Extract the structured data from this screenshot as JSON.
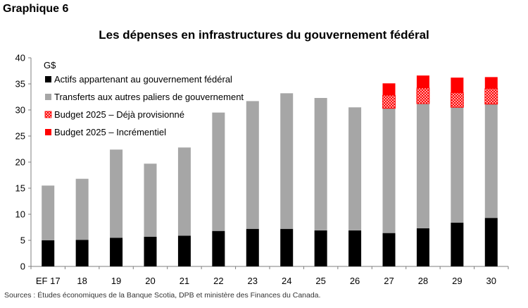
{
  "header": {
    "graph_label": "Graphique 6"
  },
  "footer": {
    "source": "Sources : Études économiques de la Banque Scotia, DPB et ministère des Finances du Canada."
  },
  "chart_data": {
    "type": "bar",
    "stacked": true,
    "title": "Les dépenses en infrastructures du gouvernement fédéral",
    "unit_label": "G$",
    "xlabel": "",
    "ylabel": "G$",
    "ylim": [
      0,
      40
    ],
    "yticks": [
      0,
      5,
      10,
      15,
      20,
      25,
      30,
      35,
      40
    ],
    "grid": false,
    "legend_position": "top-left",
    "categories": [
      "EF 17",
      "18",
      "19",
      "20",
      "21",
      "22",
      "23",
      "24",
      "25",
      "26",
      "27",
      "28",
      "29",
      "30"
    ],
    "series": [
      {
        "name": "Actifs appartenant au gouvernement fédéral",
        "color": "#000000",
        "pattern": "solid",
        "values": [
          5.0,
          5.1,
          5.5,
          5.7,
          5.9,
          6.8,
          7.2,
          7.2,
          6.9,
          6.9,
          6.4,
          7.3,
          8.4,
          9.3
        ]
      },
      {
        "name": "Transferts aux autres paliers de gouvernement",
        "color": "#a6a6a6",
        "pattern": "solid",
        "values": [
          10.5,
          11.7,
          16.9,
          14.0,
          16.9,
          22.7,
          24.5,
          26.0,
          25.4,
          23.6,
          23.9,
          23.9,
          22.1,
          21.8
        ]
      },
      {
        "name": "Budget 2025 – Déjà provisionné",
        "color": "#ff0000",
        "pattern": "hatch",
        "values": [
          0,
          0,
          0,
          0,
          0,
          0,
          0,
          0,
          0,
          0,
          2.5,
          3.0,
          2.8,
          3.0
        ]
      },
      {
        "name": "Budget 2025 – Incrémentiel",
        "color": "#ff0000",
        "pattern": "solid",
        "values": [
          0,
          0,
          0,
          0,
          0,
          0,
          0,
          0,
          0,
          0,
          2.3,
          2.4,
          2.9,
          2.2
        ]
      }
    ]
  }
}
